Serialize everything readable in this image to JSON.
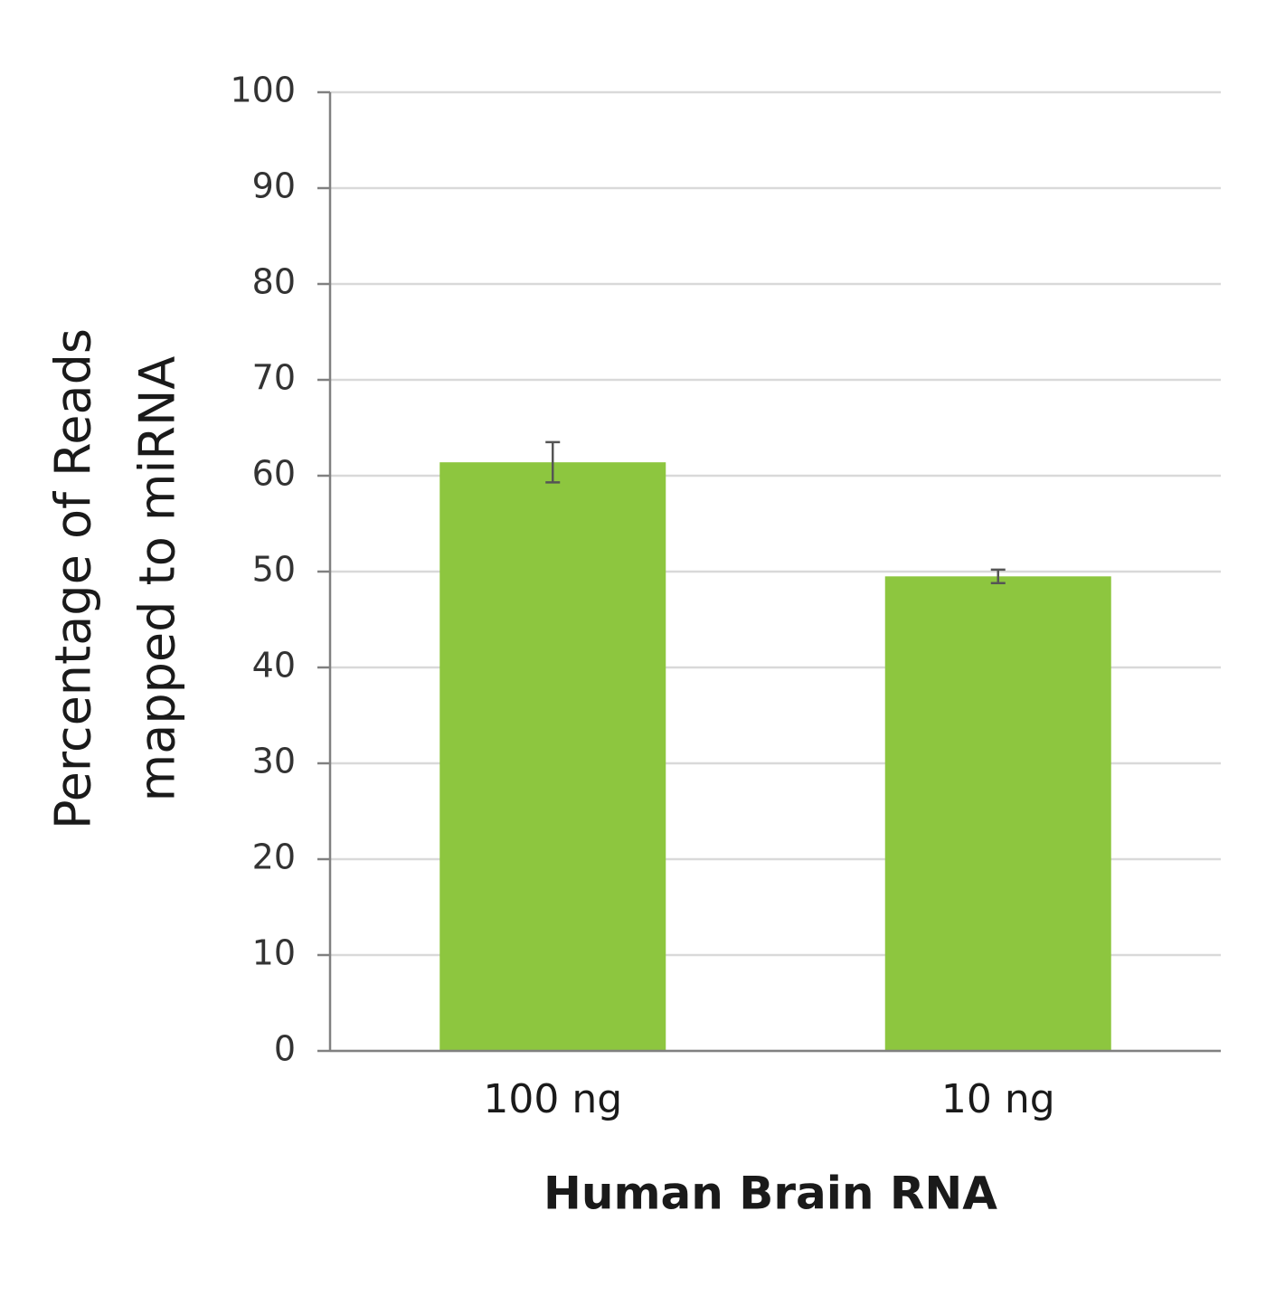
{
  "chart_data": {
    "type": "bar",
    "x_label": "Human Brain RNA",
    "y_label": [
      "Percentage of Reads",
      "mapped to miRNA"
    ],
    "categories": [
      "100 ng",
      "10 ng"
    ],
    "values": [
      61.4,
      49.5
    ],
    "errors": [
      2.1,
      0.7
    ],
    "color": "#8dc63f",
    "ylim": [
      0,
      100
    ],
    "yticks": [
      0,
      10,
      20,
      30,
      40,
      50,
      60,
      70,
      80,
      90,
      100
    ],
    "grid": true
  }
}
